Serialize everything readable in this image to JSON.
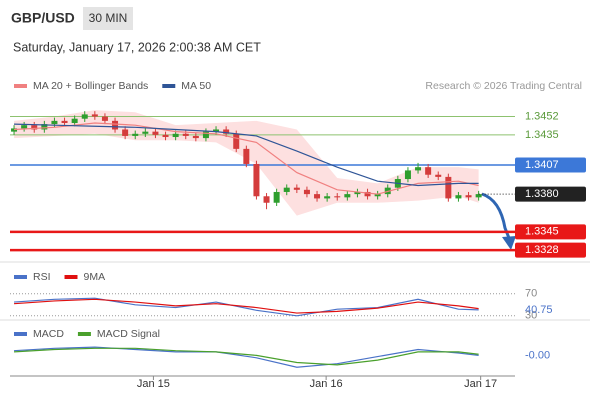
{
  "header": {
    "symbol": "GBP/USD",
    "interval": "30 MIN",
    "datetime": "Saturday, January 17, 2026 2:00:38 AM CET"
  },
  "chart_data": [
    {
      "type": "candlestick",
      "source": "Research © 2026 Trading Central",
      "xlim": [
        0.6,
        50.6
      ],
      "ylim": [
        1.3317,
        1.3472
      ],
      "up_color": "#2e9e2e",
      "down_color": "#d43c3c",
      "x": [
        1,
        2,
        3,
        4,
        5,
        6,
        7,
        8,
        9,
        10,
        11,
        12,
        13,
        14,
        15,
        16,
        17,
        18,
        19,
        20,
        21,
        22,
        23,
        24,
        25,
        26,
        27,
        28,
        29,
        30,
        31,
        32,
        33,
        34,
        35,
        36,
        37,
        38,
        39,
        40,
        41,
        42,
        43,
        44,
        45,
        46,
        47
      ],
      "open": [
        1.3438,
        1.3441,
        1.3444,
        1.344,
        1.3445,
        1.3448,
        1.3446,
        1.345,
        1.3454,
        1.3452,
        1.3448,
        1.344,
        1.3434,
        1.3436,
        1.3438,
        1.3435,
        1.3433,
        1.3436,
        1.3434,
        1.3432,
        1.3438,
        1.344,
        1.3436,
        1.3422,
        1.3408,
        1.3378,
        1.3372,
        1.3382,
        1.3386,
        1.3384,
        1.338,
        1.3376,
        1.3378,
        1.3377,
        1.338,
        1.3382,
        1.3378,
        1.338,
        1.3386,
        1.3394,
        1.3402,
        1.3405,
        1.3398,
        1.3396,
        1.3376,
        1.3379,
        1.3377
      ],
      "high": [
        1.3444,
        1.3447,
        1.3447,
        1.3448,
        1.3451,
        1.3451,
        1.3453,
        1.3457,
        1.3457,
        1.3455,
        1.3451,
        1.3443,
        1.3439,
        1.3441,
        1.3441,
        1.3438,
        1.3439,
        1.3439,
        1.3437,
        1.3441,
        1.3443,
        1.3443,
        1.3439,
        1.3425,
        1.3411,
        1.3381,
        1.3385,
        1.3389,
        1.3389,
        1.3387,
        1.3383,
        1.3381,
        1.3381,
        1.3383,
        1.3385,
        1.3385,
        1.3383,
        1.3389,
        1.3397,
        1.3405,
        1.3409,
        1.3408,
        1.3401,
        1.3399,
        1.3382,
        1.3382,
        1.3383
      ],
      "low": [
        1.3435,
        1.3438,
        1.3437,
        1.3437,
        1.3442,
        1.3443,
        1.3443,
        1.3447,
        1.3449,
        1.3445,
        1.3437,
        1.3431,
        1.3431,
        1.3433,
        1.3432,
        1.343,
        1.343,
        1.3431,
        1.3429,
        1.3429,
        1.3435,
        1.3433,
        1.3419,
        1.3405,
        1.3375,
        1.3366,
        1.3369,
        1.3379,
        1.3381,
        1.3377,
        1.3373,
        1.3373,
        1.3374,
        1.3374,
        1.3377,
        1.3375,
        1.3375,
        1.3377,
        1.3383,
        1.3391,
        1.3399,
        1.3395,
        1.3393,
        1.3373,
        1.3373,
        1.3374,
        1.3374
      ],
      "close": [
        1.3441,
        1.3444,
        1.344,
        1.3445,
        1.3448,
        1.3446,
        1.345,
        1.3454,
        1.3452,
        1.3448,
        1.344,
        1.3434,
        1.3436,
        1.3438,
        1.3435,
        1.3433,
        1.3436,
        1.3434,
        1.3432,
        1.3438,
        1.344,
        1.3436,
        1.3422,
        1.3408,
        1.3378,
        1.3372,
        1.3382,
        1.3386,
        1.3384,
        1.338,
        1.3376,
        1.3378,
        1.3377,
        1.338,
        1.3382,
        1.3378,
        1.338,
        1.3386,
        1.3394,
        1.3402,
        1.3405,
        1.3398,
        1.3396,
        1.3376,
        1.3379,
        1.3377,
        1.338
      ],
      "overlays": [
        {
          "name": "MA 20 + Bollinger Bands",
          "color": "#f08080",
          "band_color": "#fde0e0",
          "x": [
            1,
            5,
            9,
            13,
            17,
            21,
            25,
            29,
            33,
            37,
            41,
            45,
            47
          ],
          "values": [
            1.344,
            1.3442,
            1.3446,
            1.3444,
            1.3438,
            1.3436,
            1.3428,
            1.34,
            1.3384,
            1.338,
            1.339,
            1.3392,
            1.3388
          ],
          "upper": [
            1.3448,
            1.3452,
            1.3458,
            1.3456,
            1.3444,
            1.3446,
            1.3448,
            1.344,
            1.3395,
            1.339,
            1.3405,
            1.3405,
            1.3403
          ],
          "lower": [
            1.3432,
            1.3434,
            1.3436,
            1.343,
            1.343,
            1.3428,
            1.3408,
            1.336,
            1.3372,
            1.3372,
            1.3374,
            1.3378,
            1.3372
          ]
        },
        {
          "name": "MA 50",
          "color": "#2f5597",
          "x": [
            1,
            5,
            9,
            13,
            17,
            21,
            25,
            29,
            33,
            37,
            41,
            45,
            47
          ],
          "values": [
            1.3445,
            1.3444,
            1.3443,
            1.3442,
            1.344,
            1.3438,
            1.3434,
            1.342,
            1.3405,
            1.3392,
            1.3388,
            1.339,
            1.339
          ]
        }
      ],
      "levels": [
        {
          "value": 1.3452,
          "color": "#8dc26f",
          "boxed": false
        },
        {
          "value": 1.3435,
          "color": "#8dc26f",
          "boxed": false
        },
        {
          "value": 1.3407,
          "color": "#3c78d8",
          "boxed": true
        },
        {
          "value": 1.3345,
          "color": "#e81818",
          "boxed": true
        },
        {
          "value": 1.3328,
          "color": "#e81818",
          "boxed": true
        }
      ],
      "last": {
        "value": 1.338,
        "label": "1.3380",
        "color": "#222222"
      }
    },
    {
      "type": "line",
      "xlim": [
        0.6,
        50.6
      ],
      "ylim": [
        26,
        86
      ],
      "yticks": [
        70,
        30
      ],
      "x": [
        1,
        5,
        9,
        13,
        17,
        21,
        25,
        29,
        33,
        37,
        41,
        45,
        47
      ],
      "series": [
        {
          "name": "RSI",
          "color": "#4a72c8",
          "values": [
            55,
            60,
            62,
            50,
            45,
            55,
            40,
            30,
            42,
            45,
            60,
            42,
            40.75
          ]
        },
        {
          "name": "9MA",
          "color": "#e01010",
          "values": [
            52,
            57,
            60,
            55,
            48,
            52,
            45,
            35,
            38,
            44,
            55,
            48,
            43
          ]
        }
      ],
      "last": 40.75
    },
    {
      "type": "line",
      "xlim": [
        0.6,
        50.6
      ],
      "ylim": [
        -0.0015,
        0.0012
      ],
      "x": [
        1,
        5,
        9,
        13,
        17,
        21,
        25,
        29,
        33,
        37,
        41,
        45,
        47
      ],
      "series": [
        {
          "name": "MACD",
          "color": "#4a72c8",
          "values": [
            0.0003,
            0.0005,
            0.0006,
            0.0004,
            0.0002,
            0.0002,
            -0.0003,
            -0.0011,
            -0.0008,
            -0.0002,
            0.0004,
            0.0001,
            -0.0001
          ]
        },
        {
          "name": "MACD Signal",
          "color": "#4aa02c",
          "values": [
            0.0002,
            0.0004,
            0.0005,
            0.0005,
            0.0003,
            0.0002,
            -0.0001,
            -0.0007,
            -0.0009,
            -0.0005,
            0.0002,
            0.0002,
            0.0
          ]
        }
      ],
      "last": {
        "value": -0.0001,
        "label": "-0.00"
      },
      "xticks": [
        {
          "value": 14.8,
          "label": "Jan 15"
        },
        {
          "value": 31.9,
          "label": "Jan 16"
        },
        {
          "value": 47.2,
          "label": "Jan 17"
        }
      ]
    }
  ]
}
